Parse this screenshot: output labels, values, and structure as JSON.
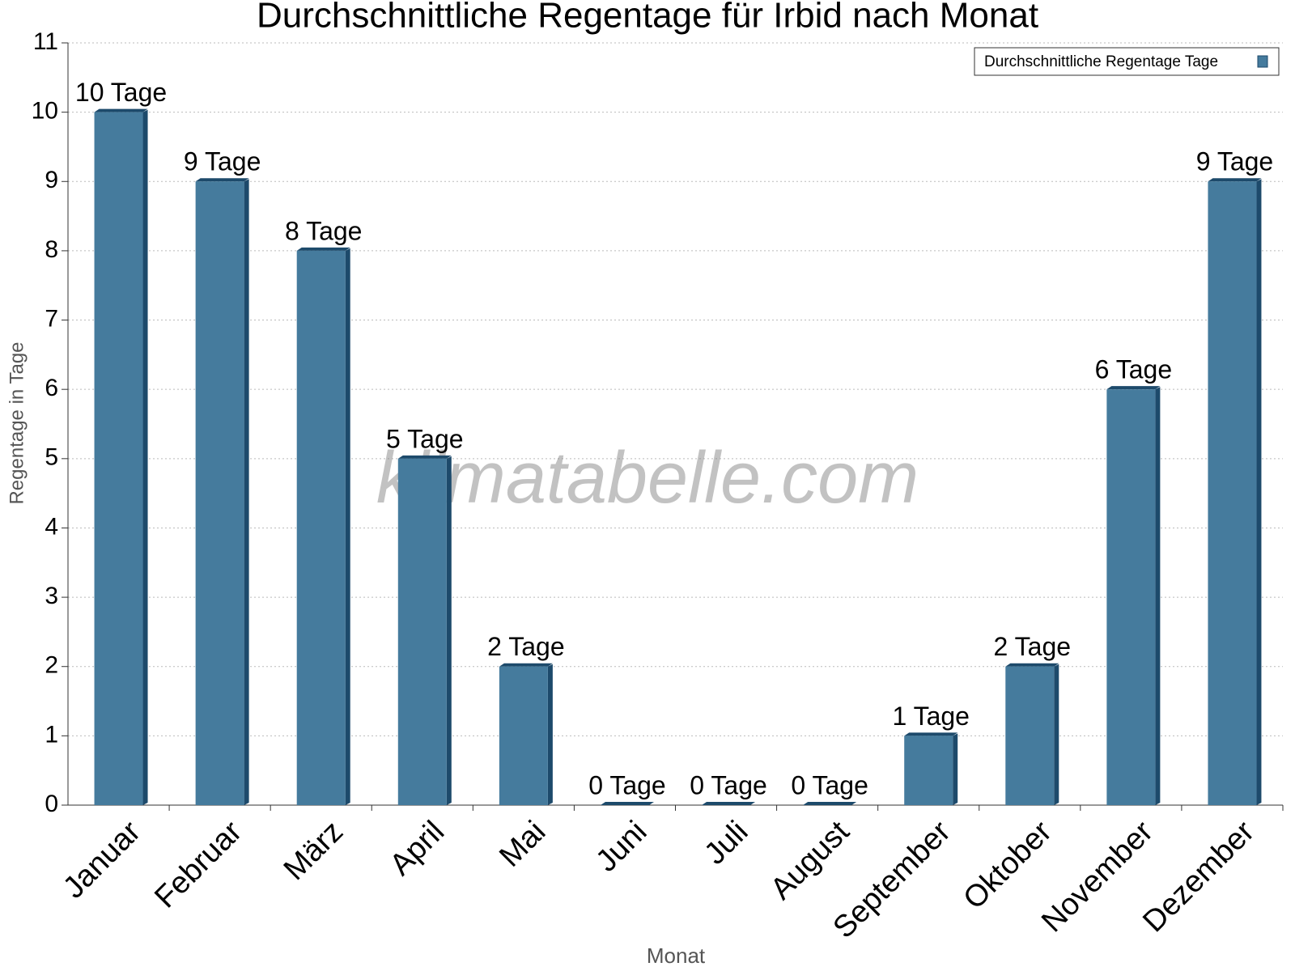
{
  "chart_data": {
    "type": "bar",
    "title": "Durchschnittliche Regentage für Irbid nach Monat",
    "x_label": "Monat",
    "y_label": "Regentage in Tage",
    "watermark": "klimatabelle.com",
    "categories": [
      "Januar",
      "Februar",
      "März",
      "April",
      "Mai",
      "Juni",
      "Juli",
      "August",
      "September",
      "Oktober",
      "November",
      "Dezember"
    ],
    "series": [
      {
        "name": "Durchschnittliche Regentage Tage",
        "color": "#457b9d",
        "values": [
          10,
          9,
          8,
          5,
          2,
          0,
          0,
          0,
          1,
          2,
          6,
          9
        ],
        "value_labels": [
          "10 Tage",
          "9 Tage",
          "8 Tage",
          "5 Tage",
          "2 Tage",
          "0 Tage",
          "0 Tage",
          "0 Tage",
          "1 Tage",
          "2 Tage",
          "6 Tage",
          "9 Tage"
        ]
      }
    ],
    "ylim": [
      0,
      11
    ],
    "yticks": [
      0,
      1,
      2,
      3,
      4,
      5,
      6,
      7,
      8,
      9,
      10,
      11
    ],
    "grid": true,
    "legend": "upper right"
  }
}
